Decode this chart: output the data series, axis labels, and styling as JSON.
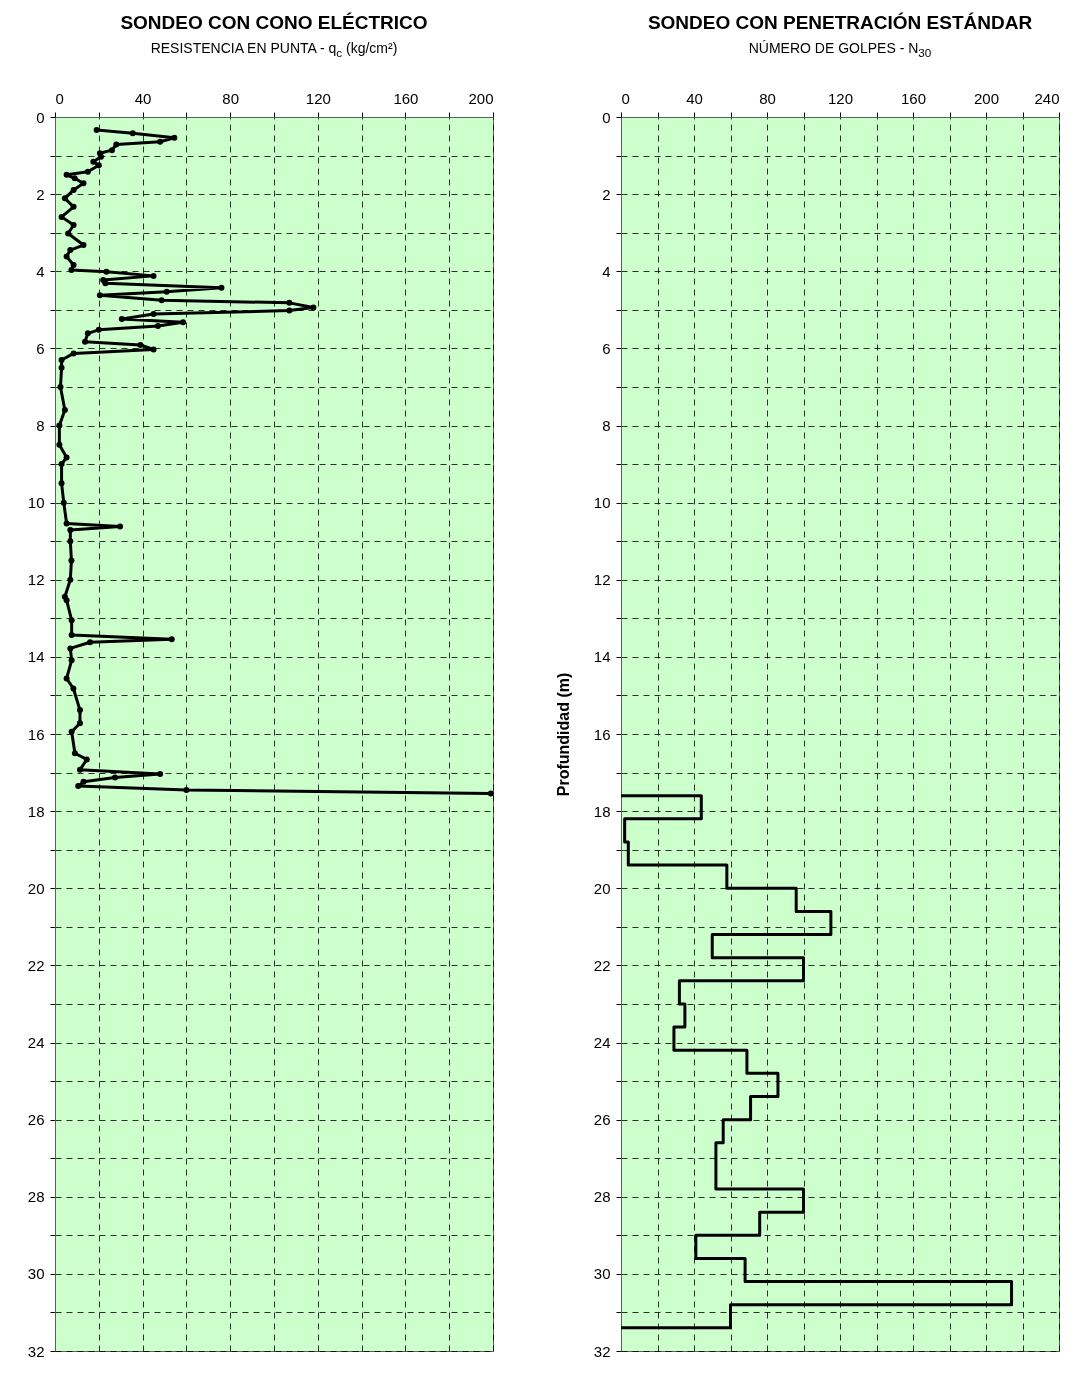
{
  "chart_data": [
    {
      "type": "line",
      "title": "SONDEO CON CONO ELÉCTRICO",
      "subtitle": "RESISTENCIA EN PUNTA - q$_{c}$ (kg/cm²)",
      "xlim": [
        0,
        200
      ],
      "xticks": [
        0,
        {
          "value": 20,
          "label": null
        },
        40,
        {
          "value": 60,
          "label": null
        },
        80,
        {
          "value": 100,
          "label": null
        },
        120,
        {
          "value": 140,
          "label": null
        },
        160,
        {
          "value": 180,
          "label": null
        },
        200
      ],
      "ylim": [
        32,
        0
      ],
      "yticks": [
        0,
        {
          "value": 1,
          "label": null
        },
        2,
        {
          "value": 3,
          "label": null
        },
        4,
        {
          "value": 5,
          "label": null
        },
        6,
        {
          "value": 7,
          "label": null
        },
        8,
        {
          "value": 9,
          "label": null
        },
        10,
        {
          "value": 11,
          "label": null
        },
        12,
        {
          "value": 13,
          "label": null
        },
        14,
        {
          "value": 15,
          "label": null
        },
        16,
        {
          "value": 17,
          "label": null
        },
        18,
        {
          "value": 19,
          "label": null
        },
        20,
        {
          "value": 21,
          "label": null
        },
        22,
        {
          "value": 23,
          "label": null
        },
        24,
        {
          "value": 25,
          "label": null
        },
        26,
        {
          "value": 27,
          "label": null
        },
        28,
        {
          "value": 29,
          "label": null
        },
        30,
        {
          "value": 31,
          "label": null
        },
        32
      ],
      "grid": true,
      "marker": "circle",
      "series": [
        {
          "color": "#000000",
          "x": [
            19,
            35.5,
            54.5,
            48,
            28,
            26,
            20.5,
            21,
            17.5,
            20,
            15,
            5.3,
            9,
            13,
            8.5,
            4.5,
            8.5,
            3,
            8.5,
            6,
            13,
            7,
            5.3,
            8.5,
            7.5,
            23.5,
            45,
            22,
            23,
            76,
            51,
            20.5,
            48.7,
            107,
            118,
            107,
            45,
            30.5,
            58.5,
            47,
            20,
            15,
            13.7,
            39,
            45,
            8.5,
            3,
            3,
            2.5,
            4.5,
            2,
            2,
            5.3,
            3,
            3,
            4,
            5.3,
            29.7,
            7,
            7,
            7.5,
            7,
            4.5,
            5.3,
            7.6,
            7.6,
            53.3,
            16,
            7,
            7.6,
            5.3,
            8.4,
            11.4,
            11.4,
            7.6,
            9.1,
            14.5,
            11.4,
            48,
            27.4,
            13,
            10.6,
            60,
            199
          ],
          "values": [
            0.34,
            0.42,
            0.54,
            0.64,
            0.71,
            0.86,
            0.94,
            1.03,
            1.16,
            1.25,
            1.42,
            1.5,
            1.59,
            1.72,
            1.89,
            2.11,
            2.33,
            2.59,
            2.8,
            3.02,
            3.32,
            3.45,
            3.62,
            3.84,
            3.97,
            4.01,
            4.12,
            4.23,
            4.31,
            4.43,
            4.53,
            4.62,
            4.75,
            4.82,
            4.94,
            5.02,
            5.11,
            5.24,
            5.32,
            5.42,
            5.52,
            5.61,
            5.83,
            5.91,
            6.03,
            6.13,
            6.3,
            6.5,
            7,
            7.6,
            8,
            8.5,
            8.83,
            9,
            9.5,
            10,
            10.54,
            10.62,
            10.71,
            11,
            11.5,
            12,
            12.44,
            12.53,
            13.05,
            13.43,
            13.54,
            13.62,
            13.78,
            14.09,
            14.56,
            14.82,
            15.38,
            15.72,
            15.94,
            16.5,
            16.66,
            16.93,
            17.04,
            17.13,
            17.24,
            17.35,
            17.45,
            17.54
          ]
        }
      ]
    },
    {
      "type": "line",
      "title": "SONDEO CON PENETRACIÓN ESTÁNDAR",
      "subtitle": "NÚMERO DE GOLPES - N$_{30}$",
      "ylabel": "Profundidad (m)",
      "xlim": [
        0,
        240
      ],
      "xticks": [
        0,
        {
          "value": 20,
          "label": null
        },
        40,
        {
          "value": 60,
          "label": null
        },
        80,
        {
          "value": 100,
          "label": null
        },
        120,
        {
          "value": 140,
          "label": null
        },
        160,
        {
          "value": 180,
          "label": null
        },
        200,
        {
          "value": 220,
          "label": null
        },
        240
      ],
      "ylim": [
        32,
        0
      ],
      "yticks": [
        0,
        {
          "value": 1,
          "label": null
        },
        2,
        {
          "value": 3,
          "label": null
        },
        4,
        {
          "value": 5,
          "label": null
        },
        6,
        {
          "value": 7,
          "label": null
        },
        8,
        {
          "value": 9,
          "label": null
        },
        10,
        {
          "value": 11,
          "label": null
        },
        12,
        {
          "value": 13,
          "label": null
        },
        14,
        {
          "value": 15,
          "label": null
        },
        16,
        {
          "value": 17,
          "label": null
        },
        18,
        {
          "value": 19,
          "label": null
        },
        20,
        {
          "value": 21,
          "label": null
        },
        22,
        {
          "value": 23,
          "label": null
        },
        24,
        {
          "value": 25,
          "label": null
        },
        26,
        {
          "value": 27,
          "label": null
        },
        28,
        {
          "value": 29,
          "label": null
        },
        30,
        {
          "value": 31,
          "label": null
        },
        32
      ],
      "grid": true,
      "series": [
        {
          "color": "#000000",
          "x": [
            0,
            44,
            44,
            2,
            2,
            4,
            4,
            58,
            58,
            96,
            96,
            115,
            115,
            50,
            50,
            100,
            100,
            32,
            32,
            35,
            35,
            29,
            29,
            69,
            69,
            86,
            86,
            71,
            71,
            56,
            56,
            52,
            52,
            100,
            100,
            76,
            76,
            41,
            41,
            68,
            68,
            214,
            214,
            60,
            60,
            0
          ],
          "values": [
            17.6,
            17.6,
            18.2,
            18.2,
            18.8,
            18.8,
            19.4,
            19.4,
            20,
            20,
            20.6,
            20.6,
            21.2,
            21.2,
            21.8,
            21.8,
            22.4,
            22.4,
            23,
            23,
            23.6,
            23.6,
            24.2,
            24.2,
            24.8,
            24.8,
            25.4,
            25.4,
            26,
            26,
            26.6,
            26.6,
            27.8,
            27.8,
            28.4,
            28.4,
            29,
            29,
            29.6,
            29.6,
            30.2,
            30.2,
            30.8,
            30.8,
            31.4,
            31.4
          ]
        }
      ]
    }
  ]
}
